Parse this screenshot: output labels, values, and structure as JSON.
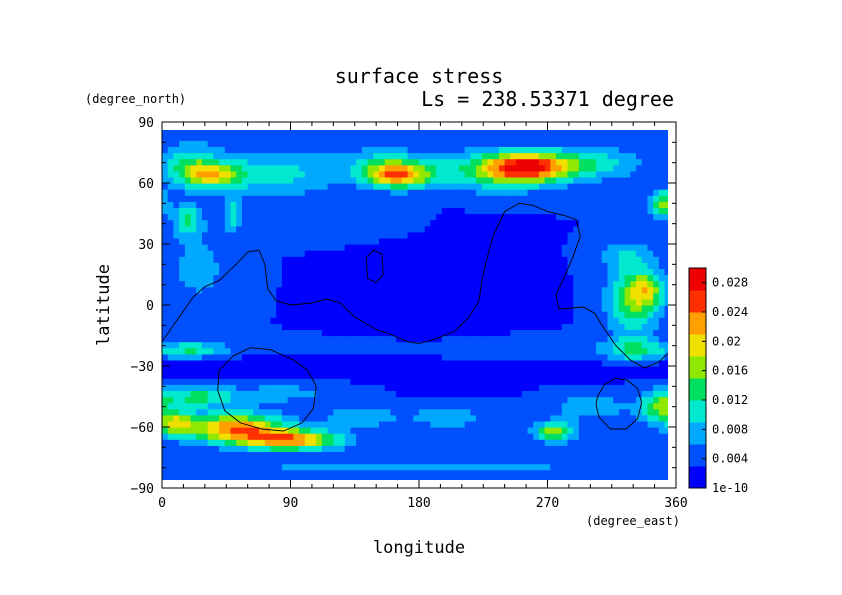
{
  "chart_data": {
    "type": "heatmap",
    "title": "surface stress",
    "subtitle": "Ls = 238.53371 degree",
    "xlabel": "longitude",
    "ylabel": "latitude",
    "x_units": "(degree_east)",
    "y_units": "(degree_north)",
    "xlim": [
      0,
      360
    ],
    "ylim": [
      -90,
      90
    ],
    "x_ticks": [
      0,
      90,
      180,
      270,
      360
    ],
    "x_tick_labels": [
      "0",
      "90",
      "180",
      "270",
      "360"
    ],
    "y_ticks": [
      -90,
      -60,
      -30,
      0,
      30,
      60,
      90
    ],
    "y_tick_labels": [
      "−90",
      "−60",
      "−30",
      "0",
      "30",
      "60",
      "90"
    ],
    "colorbar": {
      "min": 0,
      "max": 0.03,
      "ticks": [
        0,
        0.004,
        0.008,
        0.012,
        0.016,
        0.02,
        0.024,
        0.028
      ],
      "tick_labels": [
        "1e-10",
        "0.004",
        "0.008",
        "0.012",
        "0.016",
        "0.02",
        "0.024",
        "0.028"
      ],
      "colors": [
        "#0000ff",
        "#0050ff",
        "#00a8ff",
        "#00e8d0",
        "#00e060",
        "#90e800",
        "#f0e000",
        "#ffa000",
        "#ff3000",
        "#ee0000"
      ]
    },
    "grid": false,
    "background_value": 0.003,
    "field_blobs": [
      {
        "lon": 35,
        "lat": 64,
        "rlon": 22,
        "rlat": 6,
        "amp": 0.013
      },
      {
        "lon": 80,
        "lat": 65,
        "rlon": 45,
        "rlat": 12,
        "amp": 0.007
      },
      {
        "lon": 20,
        "lat": 70,
        "rlon": 20,
        "rlat": 10,
        "amp": 0.008
      },
      {
        "lon": 165,
        "lat": 64,
        "rlon": 22,
        "rlat": 6,
        "amp": 0.019
      },
      {
        "lon": 155,
        "lat": 70,
        "rlon": 30,
        "rlat": 8,
        "amp": 0.006
      },
      {
        "lon": 255,
        "lat": 68,
        "rlon": 28,
        "rlat": 7,
        "amp": 0.021
      },
      {
        "lon": 230,
        "lat": 66,
        "rlon": 45,
        "rlat": 10,
        "amp": 0.009
      },
      {
        "lon": 300,
        "lat": 70,
        "rlon": 35,
        "rlat": 8,
        "amp": 0.008
      },
      {
        "lon": 352,
        "lat": 50,
        "rlon": 10,
        "rlat": 6,
        "amp": 0.014
      },
      {
        "lon": 18,
        "lat": 42,
        "rlon": 10,
        "rlat": 8,
        "amp": 0.009
      },
      {
        "lon": 50,
        "lat": 45,
        "rlon": 6,
        "rlat": 8,
        "amp": 0.008
      },
      {
        "lon": 25,
        "lat": 18,
        "rlon": 25,
        "rlat": 20,
        "amp": 0.004
      },
      {
        "lon": 130,
        "lat": 40,
        "rlon": 50,
        "rlat": 8,
        "amp": 0.002
      },
      {
        "lon": 330,
        "lat": 2,
        "rlon": 18,
        "rlat": 16,
        "amp": 0.012
      },
      {
        "lon": 340,
        "lat": 8,
        "rlon": 12,
        "rlat": 8,
        "amp": 0.01
      },
      {
        "lon": 330,
        "lat": -22,
        "rlon": 18,
        "rlat": 6,
        "amp": 0.008
      },
      {
        "lon": 325,
        "lat": 25,
        "rlon": 20,
        "rlat": 8,
        "amp": 0.005
      },
      {
        "lon": 20,
        "lat": -22,
        "rlon": 28,
        "rlat": 4,
        "amp": 0.009
      },
      {
        "lon": 230,
        "lat": -22,
        "rlon": 110,
        "rlat": 6,
        "amp": 0.003
      },
      {
        "lon": 140,
        "lat": -30,
        "rlon": 200,
        "rlat": 5,
        "amp": -0.003
      },
      {
        "lon": 190,
        "lat": 5,
        "rlon": 50,
        "rlat": 30,
        "amp": -0.002
      },
      {
        "lon": 50,
        "lat": -60,
        "rlon": 35,
        "rlat": 7,
        "amp": 0.02
      },
      {
        "lon": 90,
        "lat": -66,
        "rlon": 35,
        "rlat": 5,
        "amp": 0.02
      },
      {
        "lon": 10,
        "lat": -58,
        "rlon": 12,
        "rlat": 6,
        "amp": 0.012
      },
      {
        "lon": 25,
        "lat": -45,
        "rlon": 25,
        "rlat": 5,
        "amp": 0.01
      },
      {
        "lon": 85,
        "lat": -43,
        "rlon": 40,
        "rlat": 6,
        "amp": 0.004
      },
      {
        "lon": 140,
        "lat": -55,
        "rlon": 25,
        "rlat": 5,
        "amp": 0.006
      },
      {
        "lon": 200,
        "lat": -55,
        "rlon": 25,
        "rlat": 5,
        "amp": 0.006
      },
      {
        "lon": 275,
        "lat": -62,
        "rlon": 14,
        "rlat": 5,
        "amp": 0.014
      },
      {
        "lon": 300,
        "lat": -50,
        "rlon": 25,
        "rlat": 6,
        "amp": 0.006
      },
      {
        "lon": 350,
        "lat": -50,
        "rlon": 15,
        "rlat": 8,
        "amp": 0.013
      },
      {
        "lon": 180,
        "lat": -80,
        "rlon": 180,
        "rlat": 4,
        "amp": 0.004
      }
    ],
    "contour_lines": [
      [
        [
          0,
          -18
        ],
        [
          8,
          -10
        ],
        [
          14,
          -4
        ],
        [
          22,
          4
        ],
        [
          30,
          9
        ],
        [
          40,
          12
        ],
        [
          52,
          20
        ],
        [
          60,
          26
        ],
        [
          68,
          27
        ],
        [
          72,
          20
        ],
        [
          74,
          8
        ],
        [
          80,
          2
        ],
        [
          90,
          0
        ],
        [
          105,
          1
        ],
        [
          115,
          3
        ],
        [
          125,
          1
        ],
        [
          135,
          -6
        ],
        [
          150,
          -12
        ],
        [
          162,
          -15
        ],
        [
          172,
          -18
        ],
        [
          180,
          -19
        ],
        [
          190,
          -17
        ],
        [
          205,
          -13
        ],
        [
          215,
          -6
        ],
        [
          222,
          2
        ],
        [
          224,
          12
        ],
        [
          228,
          24
        ],
        [
          232,
          34
        ],
        [
          240,
          46
        ],
        [
          250,
          50
        ],
        [
          260,
          49
        ],
        [
          270,
          46
        ],
        [
          282,
          44
        ],
        [
          290,
          42
        ],
        [
          293,
          34
        ],
        [
          288,
          24
        ],
        [
          282,
          14
        ],
        [
          276,
          5
        ],
        [
          278,
          -2
        ],
        [
          295,
          -1
        ],
        [
          303,
          -4
        ],
        [
          310,
          -12
        ],
        [
          318,
          -20
        ],
        [
          328,
          -27
        ],
        [
          338,
          -31
        ],
        [
          348,
          -28
        ],
        [
          360,
          -20
        ]
      ],
      [
        [
          143,
          23
        ],
        [
          148,
          27
        ],
        [
          154,
          25
        ],
        [
          155,
          15
        ],
        [
          150,
          11
        ],
        [
          144,
          13
        ],
        [
          143,
          23
        ]
      ],
      [
        [
          40,
          -32
        ],
        [
          50,
          -25
        ],
        [
          62,
          -21
        ],
        [
          76,
          -22
        ],
        [
          92,
          -27
        ],
        [
          102,
          -32
        ],
        [
          108,
          -40
        ],
        [
          106,
          -51
        ],
        [
          98,
          -58
        ],
        [
          85,
          -62
        ],
        [
          70,
          -61
        ],
        [
          55,
          -58
        ],
        [
          44,
          -52
        ],
        [
          39,
          -42
        ],
        [
          40,
          -32
        ]
      ],
      [
        [
          305,
          -45
        ],
        [
          310,
          -39
        ],
        [
          318,
          -36
        ],
        [
          326,
          -37
        ],
        [
          333,
          -41
        ],
        [
          336,
          -48
        ],
        [
          333,
          -56
        ],
        [
          325,
          -61
        ],
        [
          314,
          -61
        ],
        [
          306,
          -55
        ],
        [
          304,
          -49
        ],
        [
          305,
          -45
        ]
      ]
    ]
  }
}
